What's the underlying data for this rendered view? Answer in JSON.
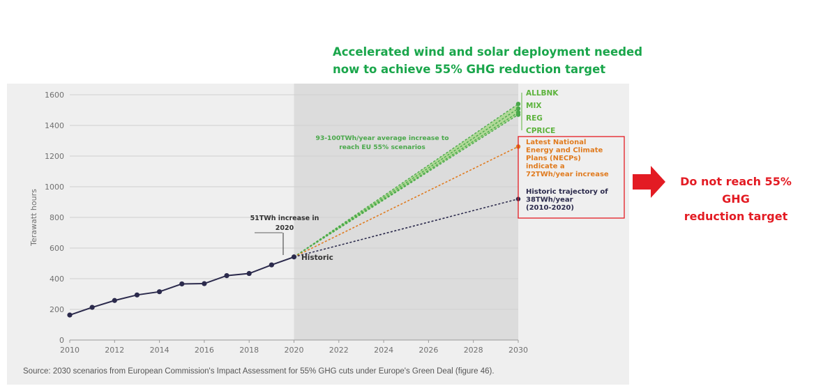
{
  "headline": {
    "line1": "Accelerated wind and solar deployment needed",
    "line2": "now to achieve 55% GHG reduction target"
  },
  "callout": {
    "line1": "Do not reach 55% GHG",
    "line2": "reduction target"
  },
  "source": "Source: 2030 scenarios from European Commission's Impact Assessment for 55% GHG cuts under Europe's Green Deal (figure 46).",
  "colors": {
    "historic": "#2b2a4c",
    "scenario": "#49a84a",
    "scenario_label": "#5db33d",
    "necp": "#e07b1f",
    "callout_red": "#e31b23",
    "headline_green": "#1aa64b",
    "shade": "#dcdcdc"
  },
  "chart_data": {
    "type": "line",
    "ylabel": "Terawatt hours",
    "xlim": [
      2010,
      2030
    ],
    "ylim": [
      0,
      1600
    ],
    "x_ticks": [
      2010,
      2012,
      2014,
      2016,
      2018,
      2020,
      2022,
      2024,
      2026,
      2028,
      2030
    ],
    "y_ticks": [
      0,
      200,
      400,
      600,
      800,
      1000,
      1200,
      1400,
      1600
    ],
    "shaded_region": [
      2020,
      2030
    ],
    "historic": {
      "name": "Historic",
      "x": [
        2010,
        2011,
        2012,
        2013,
        2014,
        2015,
        2016,
        2017,
        2018,
        2019,
        2020
      ],
      "y": [
        163,
        213,
        258,
        294,
        315,
        366,
        368,
        420,
        434,
        490,
        542
      ]
    },
    "scenarios": [
      {
        "name": "ALLBNK",
        "x": [
          2020,
          2030
        ],
        "y": [
          542,
          1540
        ]
      },
      {
        "name": "MIX",
        "x": [
          2020,
          2030
        ],
        "y": [
          542,
          1510
        ]
      },
      {
        "name": "REG",
        "x": [
          2020,
          2030
        ],
        "y": [
          542,
          1485
        ]
      },
      {
        "name": "CPRICE",
        "x": [
          2020,
          2030
        ],
        "y": [
          542,
          1470
        ]
      }
    ],
    "necp": {
      "x": [
        2020,
        2030
      ],
      "y": [
        542,
        1262
      ]
    },
    "historic_trajectory": {
      "x": [
        2020,
        2030
      ],
      "y": [
        542,
        920
      ]
    },
    "annotations": {
      "increase_2020": [
        "51TWh increase in",
        "2020"
      ],
      "historic_label": "Historic",
      "scenario_range": [
        "93-100TWh/year average increase to",
        "reach EU 55% scenarios"
      ],
      "necp_label": [
        "Latest National",
        "Energy and Climate",
        "Plans (NECPs)",
        "indicate a",
        "72TWh/year increase"
      ],
      "trajectory_label": [
        "Historic trajectory of",
        "38TWh/year",
        "(2010-2020)"
      ]
    }
  }
}
